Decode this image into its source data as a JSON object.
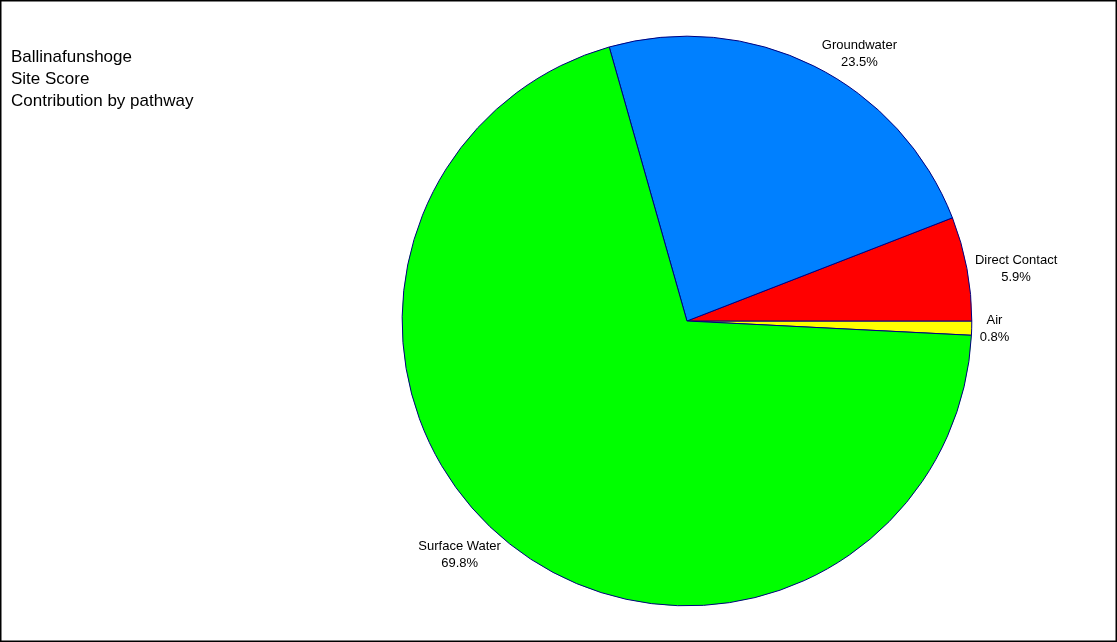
{
  "chart_data": {
    "type": "pie",
    "title": "Ballinafunshoge\nSite Score\nContribution by pathway",
    "categories": [
      "Air",
      "Direct Contact",
      "Groundwater",
      "Surface Water"
    ],
    "values": [
      0.8,
      5.9,
      23.5,
      69.8
    ],
    "value_labels": [
      "0.8%",
      "5.9%",
      "23.5%",
      "69.8%"
    ],
    "colors": [
      "#ffff00",
      "#ff0000",
      "#0080ff",
      "#00ff00"
    ],
    "legend": false
  }
}
